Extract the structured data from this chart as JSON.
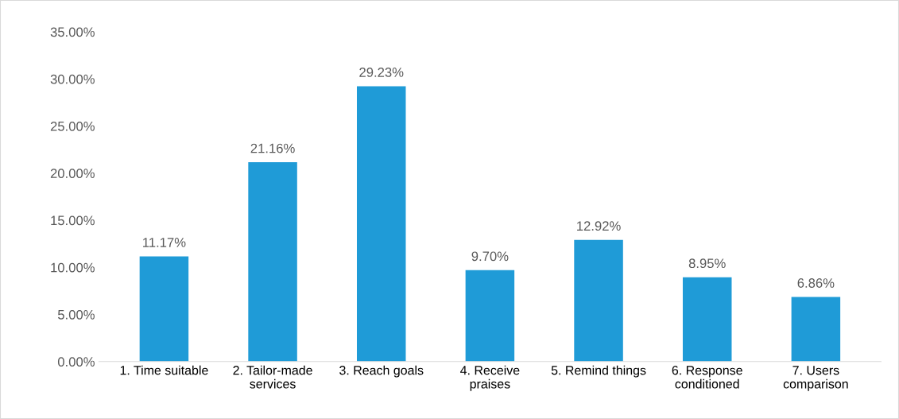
{
  "chart_data": {
    "type": "bar",
    "categories": [
      "1. Time suitable",
      "2. Tailor-made\nservices",
      "3. Reach goals",
      "4. Receive\npraises",
      "5. Remind things",
      "6. Response\nconditioned",
      "7. Users\ncomparison"
    ],
    "values": [
      11.17,
      21.16,
      29.23,
      9.7,
      12.92,
      8.95,
      6.86
    ],
    "value_labels": [
      "11.17%",
      "21.16%",
      "29.23%",
      "9.70%",
      "12.92%",
      "8.95%",
      "6.86%"
    ],
    "color": "#1f9bd7",
    "ylim": [
      0,
      35
    ],
    "yticks": [
      {
        "value": 0,
        "label": "0.00%"
      },
      {
        "value": 5,
        "label": "5.00%"
      },
      {
        "value": 10,
        "label": "10.00%"
      },
      {
        "value": 15,
        "label": "15.00%"
      },
      {
        "value": 20,
        "label": "20.00%"
      },
      {
        "value": 25,
        "label": "25.00%"
      },
      {
        "value": 30,
        "label": "30.00%"
      },
      {
        "value": 35,
        "label": "35.00%"
      }
    ],
    "grid": false,
    "legend": false
  }
}
